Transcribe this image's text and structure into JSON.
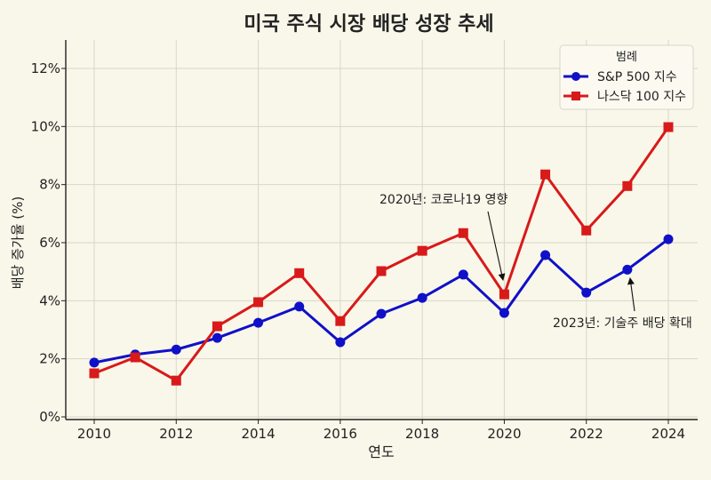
{
  "chart_data": {
    "type": "line",
    "title": "미국 주식 시장 배당 성장 추세",
    "xlabel": "연도",
    "ylabel": "배당 증가율 (%)",
    "x": [
      2010,
      2011,
      2012,
      2013,
      2014,
      2015,
      2016,
      2017,
      2018,
      2019,
      2020,
      2021,
      2022,
      2023,
      2024
    ],
    "xticks": [
      2010,
      2012,
      2014,
      2016,
      2018,
      2020,
      2022,
      2024
    ],
    "yticks": [
      0,
      2,
      4,
      6,
      8,
      10,
      12
    ],
    "ytick_labels": [
      "0%",
      "2%",
      "4%",
      "6%",
      "8%",
      "10%",
      "12%"
    ],
    "xlim": [
      2009.4,
      2024.6
    ],
    "ylim": [
      -0.1,
      13.0
    ],
    "grid": true,
    "legend": {
      "title": "범례",
      "position": "upper right"
    },
    "series": [
      {
        "name": "S&P 500 지수",
        "color": "#1010c8",
        "marker": "circle",
        "values": [
          1.87,
          2.15,
          2.32,
          2.72,
          3.24,
          3.8,
          2.57,
          3.55,
          4.1,
          4.9,
          3.58,
          5.57,
          4.28,
          5.07,
          6.12
        ]
      },
      {
        "name": "나스닥 100 지수",
        "color": "#d81a1a",
        "marker": "square",
        "values": [
          1.5,
          2.05,
          1.25,
          3.12,
          3.95,
          4.95,
          3.3,
          5.02,
          5.72,
          6.33,
          4.22,
          8.35,
          6.42,
          7.95,
          9.98
        ]
      }
    ],
    "annotations": [
      {
        "text": "2020년: 코로나19 영향",
        "x": 2020,
        "y": 4.22,
        "text_pos": [
          2017.0,
          7.4
        ],
        "series": "나스닥 100 지수"
      },
      {
        "text": "2023년: 기술주 배당 확대",
        "x": 2023,
        "y": 5.07,
        "text_pos": [
          2023.2,
          3.25
        ],
        "series": "S&P 500 지수"
      }
    ]
  },
  "colors": {
    "background": "#f9f7ea",
    "grid": "#d9d6c6",
    "axis": "#222222"
  }
}
